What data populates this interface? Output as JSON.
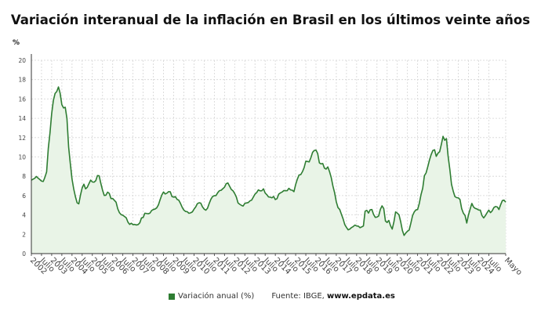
{
  "title": "Variación interanual de la inflación en Brasil en los últimos veinte años",
  "legend": {
    "label": "Variación anual (%)",
    "color": "#2e7d32"
  },
  "source": {
    "prefix": "Fuente: IBGE, ",
    "site": "www.epdata.es"
  },
  "chart_data": {
    "type": "area",
    "title": "Variación interanual de la inflación en Brasil en los últimos veinte años",
    "ylabel": "%",
    "xlabel": "",
    "ylim": [
      0,
      20
    ],
    "yticks": [
      0,
      2,
      4,
      6,
      8,
      10,
      12,
      14,
      16,
      18,
      20
    ],
    "grid": true,
    "legend_position": "bottom",
    "start": "2002-01",
    "end": "2025-05",
    "frequency": "monthly",
    "xtick_labels": [
      "2002",
      "Julio",
      "2003",
      "Julio",
      "2004",
      "Julio",
      "2005",
      "Julio",
      "2006",
      "Julio",
      "2007",
      "Julio",
      "2008",
      "Julio",
      "2009",
      "Julio",
      "2010",
      "Julio",
      "2011",
      "Julio",
      "2012",
      "Julio",
      "2013",
      "Julio",
      "2014",
      "Julio",
      "2015",
      "Julio",
      "2016",
      "Julio",
      "2017",
      "Julio",
      "2018",
      "Julio",
      "2019",
      "Julio",
      "2020",
      "Julio",
      "2021",
      "Julio",
      "2022",
      "Julio",
      "2023",
      "Julio",
      "2024",
      "Julio",
      "Mayo"
    ],
    "series": [
      {
        "name": "Variación anual (%)",
        "color": "#2e7d32",
        "values_by_year": {
          "2002": [
            7.6,
            7.7,
            7.8,
            7.98,
            7.8,
            7.66,
            7.5,
            7.46,
            7.9,
            8.45,
            10.9,
            12.5
          ],
          "2003": [
            14.5,
            15.85,
            16.57,
            16.77,
            17.24,
            16.57,
            15.4,
            15.07,
            15.14,
            13.98,
            11.02,
            9.3
          ],
          "2004": [
            7.71,
            6.69,
            5.89,
            5.26,
            5.15,
            6.06,
            6.81,
            7.18,
            6.7,
            6.86,
            7.24,
            7.6
          ],
          "2005": [
            7.41,
            7.39,
            7.54,
            8.07,
            8.05,
            7.27,
            6.57,
            6.02,
            6.04,
            6.36,
            6.22,
            5.69
          ],
          "2006": [
            5.7,
            5.51,
            5.32,
            4.63,
            4.23,
            4.03,
            3.97,
            3.84,
            3.7,
            3.26,
            3.02,
            3.14
          ],
          "2007": [
            2.99,
            3.02,
            2.96,
            3.0,
            3.18,
            3.69,
            3.74,
            4.18,
            4.15,
            4.12,
            4.19,
            4.46
          ],
          "2008": [
            4.56,
            4.61,
            4.73,
            5.04,
            5.58,
            6.06,
            6.37,
            6.17,
            6.25,
            6.41,
            6.39,
            5.9
          ],
          "2009": [
            5.84,
            5.9,
            5.61,
            5.53,
            5.2,
            4.8,
            4.5,
            4.36,
            4.34,
            4.17,
            4.22,
            4.31
          ],
          "2010": [
            4.59,
            4.83,
            5.17,
            5.26,
            5.22,
            4.84,
            4.6,
            4.49,
            4.7,
            5.2,
            5.63,
            5.91
          ],
          "2011": [
            5.99,
            6.01,
            6.3,
            6.51,
            6.55,
            6.71,
            6.87,
            7.23,
            7.31,
            6.97,
            6.64,
            6.5
          ],
          "2012": [
            6.22,
            5.85,
            5.24,
            5.1,
            4.99,
            4.92,
            5.2,
            5.24,
            5.28,
            5.45,
            5.53,
            5.84
          ],
          "2013": [
            6.15,
            6.31,
            6.59,
            6.49,
            6.5,
            6.7,
            6.27,
            6.09,
            5.86,
            5.84,
            5.77,
            5.91
          ],
          "2014": [
            5.59,
            5.68,
            6.15,
            6.28,
            6.37,
            6.52,
            6.5,
            6.51,
            6.75,
            6.59,
            6.56,
            6.41
          ],
          "2015": [
            7.14,
            7.7,
            8.13,
            8.17,
            8.47,
            8.89,
            9.56,
            9.53,
            9.49,
            9.93,
            10.48,
            10.67
          ],
          "2016": [
            10.71,
            10.36,
            9.39,
            9.28,
            9.32,
            8.84,
            8.74,
            8.97,
            8.48,
            7.87,
            6.99,
            6.29
          ],
          "2017": [
            5.35,
            4.76,
            4.57,
            4.08,
            3.6,
            3.0,
            2.71,
            2.46,
            2.54,
            2.7,
            2.8,
            2.95
          ],
          "2018": [
            2.86,
            2.84,
            2.68,
            2.76,
            2.86,
            4.39,
            4.48,
            4.19,
            4.53,
            4.56,
            4.05,
            3.75
          ],
          "2019": [
            3.78,
            3.89,
            4.58,
            4.94,
            4.66,
            3.37,
            3.22,
            3.43,
            2.89,
            2.54,
            3.27,
            4.31
          ],
          "2020": [
            4.19,
            4.01,
            3.3,
            2.4,
            1.88,
            2.13,
            2.31,
            2.44,
            3.14,
            3.92,
            4.31,
            4.52
          ],
          "2021": [
            4.56,
            5.2,
            6.1,
            6.76,
            8.06,
            8.35,
            8.99,
            9.68,
            10.25,
            10.67,
            10.74,
            10.06
          ],
          "2022": [
            10.38,
            10.54,
            11.3,
            12.13,
            11.73,
            11.89,
            10.07,
            8.73,
            7.17,
            6.47,
            5.9,
            5.79
          ],
          "2023": [
            5.77,
            5.6,
            4.65,
            4.18,
            3.94,
            3.16,
            3.99,
            4.61,
            5.19,
            4.82,
            4.68,
            4.62
          ],
          "2024": [
            4.51,
            4.5,
            3.93,
            3.69,
            3.93,
            4.23,
            4.5,
            4.24,
            4.42,
            4.76,
            4.87,
            4.83
          ],
          "2025": [
            4.56,
            5.06,
            5.48,
            5.53,
            5.32
          ]
        }
      }
    ]
  }
}
